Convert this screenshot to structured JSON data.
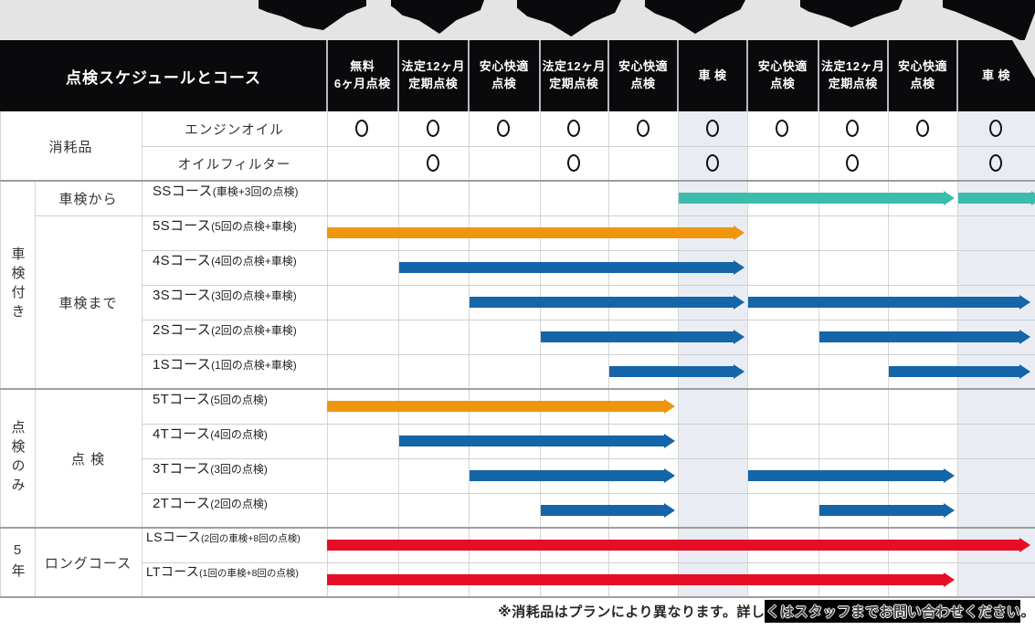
{
  "header": {
    "title": "点検スケジュールとコース",
    "columns": [
      {
        "label": "無料\n6ヶ月点検"
      },
      {
        "label": "法定12ヶ月\n定期点検"
      },
      {
        "label": "安心快適\n点検"
      },
      {
        "label": "法定12ヶ月\n定期点検"
      },
      {
        "label": "安心快適\n点検"
      },
      {
        "label": "車 検"
      },
      {
        "label": "安心快適\n点検"
      },
      {
        "label": "法定12ヶ月\n定期点検"
      },
      {
        "label": "安心快適\n点検"
      },
      {
        "label": "車 検"
      }
    ]
  },
  "groups": [
    {
      "label": "消耗品",
      "col": "AB",
      "r0": 0,
      "r1": 1,
      "vertical": false
    },
    {
      "label": "車検付き",
      "col": "A",
      "r0": 2,
      "r1": 7,
      "vertical": true
    },
    {
      "label": "車検から",
      "col": "B",
      "r0": 2,
      "r1": 2,
      "vertical": false
    },
    {
      "label": "車検まで",
      "col": "B",
      "r0": 3,
      "r1": 7,
      "vertical": false
    },
    {
      "label": "点検のみ",
      "col": "A",
      "r0": 8,
      "r1": 11,
      "vertical": true
    },
    {
      "label": "点 検",
      "col": "B",
      "r0": 8,
      "r1": 11,
      "vertical": false
    },
    {
      "label": "5年",
      "col": "A",
      "r0": 12,
      "r1": 13,
      "vertical": true
    },
    {
      "label": "ロングコース",
      "col": "B",
      "r0": 12,
      "r1": 13,
      "vertical": false
    }
  ],
  "footnote": {
    "start": "※消耗品はプランにより異なります。詳し",
    "highlight": "くはスタッフまでお問い合わせください",
    "end": "。"
  },
  "colors": {
    "teal": "#3cbcac",
    "orange": "#f0960e",
    "blue": "#1565a9",
    "red": "#e60d26",
    "shaded_column": "#e9edf3",
    "header_black": "#0a0a0c",
    "top_strip_gray": "#e4e4e5"
  },
  "chart_data": {
    "type": "table",
    "subtype": "gantt-schedule",
    "title": "点検スケジュールとコース",
    "columns": [
      "無料6ヶ月点検",
      "法定12ヶ月定期点検",
      "安心快適点検",
      "法定12ヶ月定期点検",
      "安心快適点検",
      "車検",
      "安心快適点検",
      "法定12ヶ月定期点検",
      "安心快適点検",
      "車検"
    ],
    "shaded_columns": [
      6,
      10
    ],
    "consumable_rows": [
      {
        "label": "エンジンオイル",
        "cols": [
          1,
          2,
          3,
          4,
          5,
          6,
          7,
          8,
          9,
          10
        ]
      },
      {
        "label": "オイルフィルター",
        "cols": [
          2,
          4,
          6,
          8,
          10
        ]
      }
    ],
    "courses": [
      {
        "main": "SSコース",
        "paren": "(車検+3回の点検)",
        "color_key": "teal",
        "compact": false,
        "segments": [
          {
            "from": 6,
            "to": 9
          },
          {
            "from": 10,
            "to": 10,
            "clip": true
          }
        ]
      },
      {
        "main": "5Sコース",
        "paren": "(5回の点検+車検)",
        "color_key": "orange",
        "compact": false,
        "segments": [
          {
            "from": 1,
            "to": 6
          }
        ]
      },
      {
        "main": "4Sコース",
        "paren": "(4回の点検+車検)",
        "color_key": "blue",
        "compact": false,
        "segments": [
          {
            "from": 2,
            "to": 6
          }
        ]
      },
      {
        "main": "3Sコース",
        "paren": "(3回の点検+車検)",
        "color_key": "blue",
        "compact": false,
        "segments": [
          {
            "from": 3,
            "to": 6
          },
          {
            "from": 7,
            "to": 10
          }
        ]
      },
      {
        "main": "2Sコース",
        "paren": "(2回の点検+車検)",
        "color_key": "blue",
        "compact": false,
        "segments": [
          {
            "from": 4,
            "to": 6
          },
          {
            "from": 8,
            "to": 10
          }
        ]
      },
      {
        "main": "1Sコース",
        "paren": "(1回の点検+車検)",
        "color_key": "blue",
        "compact": false,
        "segments": [
          {
            "from": 5,
            "to": 6
          },
          {
            "from": 9,
            "to": 10
          }
        ]
      },
      {
        "main": "5Tコース",
        "paren": "(5回の点検)",
        "color_key": "orange",
        "compact": false,
        "segments": [
          {
            "from": 1,
            "to": 5
          }
        ]
      },
      {
        "main": "4Tコース",
        "paren": "(4回の点検)",
        "color_key": "blue",
        "compact": false,
        "segments": [
          {
            "from": 2,
            "to": 5
          }
        ]
      },
      {
        "main": "3Tコース",
        "paren": "(3回の点検)",
        "color_key": "blue",
        "compact": false,
        "segments": [
          {
            "from": 3,
            "to": 5
          },
          {
            "from": 7,
            "to": 9
          }
        ]
      },
      {
        "main": "2Tコース",
        "paren": "(2回の点検)",
        "color_key": "blue",
        "compact": false,
        "segments": [
          {
            "from": 4,
            "to": 5
          },
          {
            "from": 8,
            "to": 9
          }
        ]
      },
      {
        "main": "LSコース",
        "paren": "(2回の車検+8回の点検)",
        "color_key": "red",
        "compact": true,
        "segments": [
          {
            "from": 1,
            "to": 10
          }
        ]
      },
      {
        "main": "LTコース",
        "paren": "(1回の車検+8回の点検)",
        "color_key": "red",
        "compact": true,
        "segments": [
          {
            "from": 1,
            "to": 9
          }
        ]
      }
    ]
  }
}
